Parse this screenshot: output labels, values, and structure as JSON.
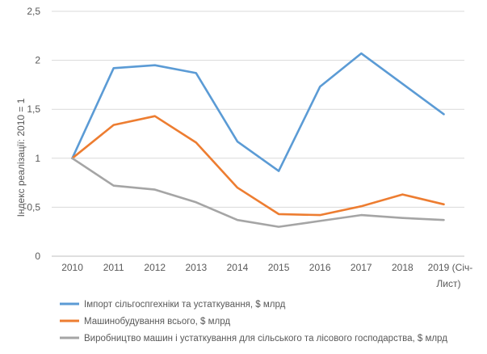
{
  "chart_data": {
    "type": "line",
    "ylabel": "Індекс реалізації: 2010 = 1",
    "ylim": [
      0,
      2.5
    ],
    "yticks": [
      "0",
      "0,5",
      "1",
      "1,5",
      "2",
      "2,5"
    ],
    "grid": true,
    "legend_position": "bottom",
    "categories": [
      "2010",
      "2011",
      "2012",
      "2013",
      "2014",
      "2015",
      "2016",
      "2017",
      "2018",
      "2019 (Січ-Лист)"
    ],
    "series": [
      {
        "name": "Імпорт сільгоспгехніки та устаткування, $ млрд",
        "color": "#5b9bd5",
        "values": [
          1.0,
          1.92,
          1.95,
          1.87,
          1.17,
          0.87,
          1.73,
          2.07,
          1.76,
          1.45
        ]
      },
      {
        "name": "Машинобудування всього, $ млрд",
        "color": "#ed7d31",
        "values": [
          1.0,
          1.34,
          1.43,
          1.16,
          0.7,
          0.43,
          0.42,
          0.51,
          0.63,
          0.53
        ]
      },
      {
        "name": "Виробництво машин і устаткування для сільського та лісового господарства, $ млрд",
        "color": "#a5a5a5",
        "values": [
          1.0,
          0.72,
          0.68,
          0.55,
          0.37,
          0.3,
          0.36,
          0.42,
          0.39,
          0.37
        ]
      }
    ]
  }
}
